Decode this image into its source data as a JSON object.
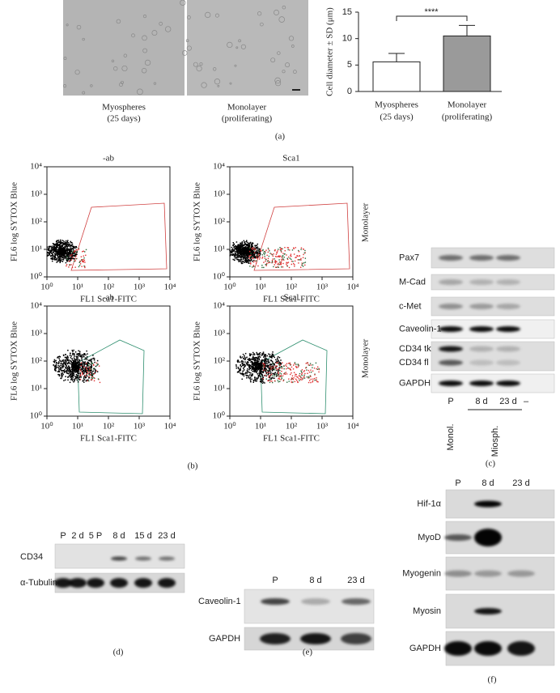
{
  "panel_a": {
    "image_labels": [
      [
        "Myospheres",
        "(25 days)"
      ],
      [
        "Monolayer",
        "(proliferating)"
      ]
    ],
    "chart": {
      "type": "bar",
      "ylabel": "Cell diameter ± SD (μm)",
      "categories": [
        [
          "Myospheres",
          "(25 days)"
        ],
        [
          "Monolayer",
          "(proliferating)"
        ]
      ],
      "values": [
        5.6,
        10.5
      ],
      "errors": [
        1.6,
        2.0
      ],
      "colors": [
        "#ffffff",
        "#9a9a9a"
      ],
      "ylim": [
        0,
        15
      ],
      "yticks": [
        0,
        5,
        10,
        15
      ],
      "significance": "****"
    },
    "letter": "(a)"
  },
  "panel_b": {
    "ylabel": "FL6 log SYTOX Blue",
    "xlabel": "FL1 Sca1-FITC",
    "ticks": [
      "10⁰",
      "10¹",
      "10²",
      "10³",
      "10⁴"
    ],
    "plots": [
      {
        "title": "-ab"
      },
      {
        "title": "Sca1"
      },
      {
        "title": "-ab"
      },
      {
        "title": "Scal"
      }
    ],
    "side_labels": [
      "Monolayer",
      "Monolayer"
    ],
    "letter": "(b)"
  },
  "panel_c": {
    "rows": [
      "Pax7",
      "M-Cad",
      "c-Met",
      "Caveolin-1",
      "CD34 tk",
      "CD34 fl",
      "GAPDH"
    ],
    "lanes": [
      "P",
      "8 d",
      "23 d",
      "–"
    ],
    "groups": [
      "Monol.",
      "Miosph."
    ],
    "letter": "(c)"
  },
  "panel_d": {
    "lanes": [
      "P",
      "2 d",
      "5 P",
      "8 d",
      "15 d",
      "23 d"
    ],
    "rows": [
      "CD34",
      "α-Tubulin"
    ],
    "letter": "(d)"
  },
  "panel_e": {
    "lanes": [
      "P",
      "8 d",
      "23 d"
    ],
    "rows": [
      "Caveolin-1",
      "GAPDH"
    ],
    "letter": "(e)"
  },
  "panel_f": {
    "lanes": [
      "P",
      "8 d",
      "23 d"
    ],
    "rows": [
      "Hif-1α",
      "MyoD",
      "Myogenin",
      "Myosin",
      "GAPDH"
    ],
    "letter": "(f)"
  }
}
